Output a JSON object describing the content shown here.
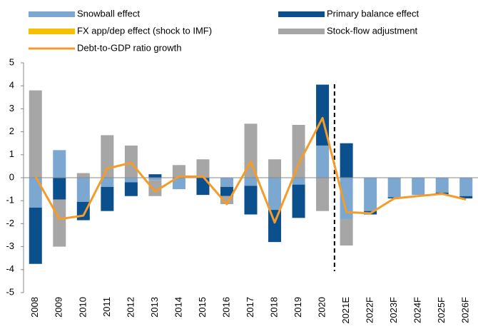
{
  "chart_data": {
    "type": "stacked-bar-line",
    "categories": [
      "2008",
      "2009",
      "2010",
      "2011",
      "2012",
      "2013",
      "2014",
      "2015",
      "2016",
      "2017",
      "2018",
      "2019",
      "2020",
      "2021E",
      "2022F",
      "2023F",
      "2024F",
      "2025F",
      "2026F"
    ],
    "series": [
      {
        "name": "Snowball effect",
        "color": "#7ba7d0",
        "values": [
          -1.3,
          1.2,
          -1.05,
          -0.4,
          -0.2,
          -0.1,
          -0.5,
          0,
          -0.4,
          -0.35,
          -1.4,
          -0.3,
          1.4,
          -1.8,
          -1.45,
          -0.85,
          -0.75,
          -0.65,
          -0.8
        ]
      },
      {
        "name": "Primary balance effect",
        "color": "#0b4f8c",
        "values": [
          -2.45,
          -0.95,
          -0.8,
          -1.05,
          -0.6,
          0.15,
          0,
          -0.75,
          -0.4,
          -1.25,
          -1.4,
          -1.45,
          2.65,
          1.5,
          -0.15,
          -0.05,
          0,
          -0.1,
          -0.1
        ]
      },
      {
        "name": "FX app/dep effect (shock to IMF)",
        "color": "#f5c000",
        "values": [
          0,
          0,
          0,
          0,
          0,
          0,
          0,
          0,
          0,
          0,
          0,
          0,
          0,
          0,
          0,
          0,
          0,
          0,
          0
        ]
      },
      {
        "name": "Stock-flow adjustment",
        "color": "#a6a6a6",
        "values": [
          3.8,
          -2.05,
          0.2,
          1.85,
          1.4,
          -0.7,
          0.55,
          0.8,
          -0.35,
          2.35,
          0.8,
          2.3,
          -1.45,
          -1.15,
          0,
          0,
          0,
          0,
          0
        ]
      },
      {
        "name": "Debt-to-GDP ratio growth",
        "color": "#f39c29",
        "type": "line",
        "values": [
          0.05,
          -1.8,
          -1.65,
          0.4,
          0.65,
          -0.6,
          0.05,
          0.05,
          -1.15,
          0.7,
          -1.95,
          0.6,
          2.6,
          -1.5,
          -1.55,
          -0.9,
          -0.8,
          -0.7,
          -0.95
        ]
      }
    ],
    "ylim": [
      -5,
      5
    ],
    "yticks": [
      -5,
      -4,
      -3,
      -2,
      -1,
      0,
      1,
      2,
      3,
      4,
      5
    ]
  }
}
